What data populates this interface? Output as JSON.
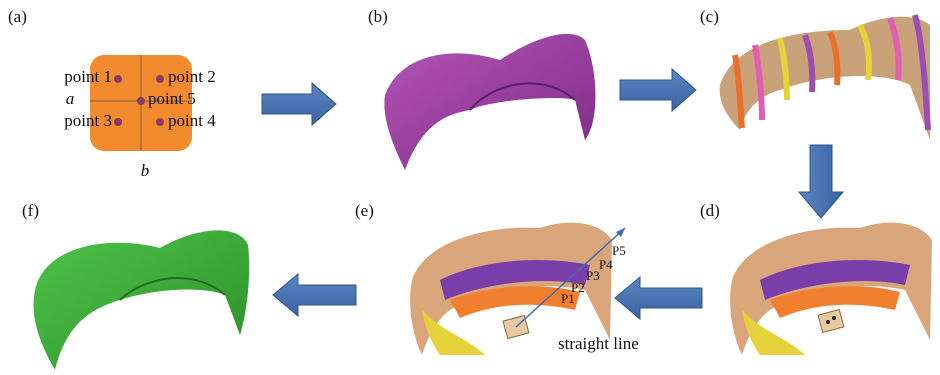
{
  "panels": [
    {
      "label": "(a)"
    },
    {
      "label": "(b)"
    },
    {
      "label": "(c)"
    },
    {
      "label": "(d)"
    },
    {
      "label": "(e)"
    },
    {
      "label": "(f)"
    }
  ],
  "panel_a": {
    "points": [
      "point 1",
      "point 2",
      "point 5",
      "point 3",
      "point 4"
    ],
    "axis_a": "a",
    "axis_b": "b"
  },
  "panel_e": {
    "points": [
      "P1",
      "P2",
      "P3",
      "P4",
      "P5"
    ],
    "caption": "straight line"
  }
}
